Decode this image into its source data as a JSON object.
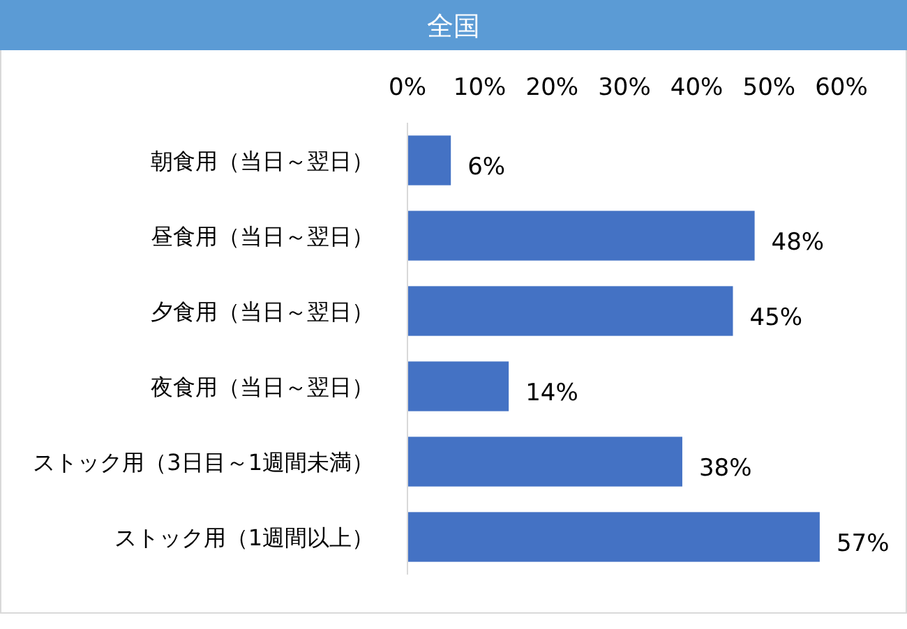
{
  "chart_data": {
    "type": "bar",
    "orientation": "horizontal",
    "title": "全国",
    "categories": [
      "朝食用（当日～翌日）",
      "昼食用（当日～翌日）",
      "夕食用（当日～翌日）",
      "夜食用（当日～翌日）",
      "ストック用（3日目～1週間未満）",
      "ストック用（1週間以上）"
    ],
    "values": [
      6,
      48,
      45,
      14,
      38,
      57
    ],
    "value_labels": [
      "6%",
      "48%",
      "45%",
      "14%",
      "38%",
      "57%"
    ],
    "color": "#4472c4",
    "xlim": [
      0,
      60
    ],
    "xticks": [
      {
        "value": 0,
        "label": "0%"
      },
      {
        "value": 10,
        "label": "10%"
      },
      {
        "value": 20,
        "label": "20%"
      },
      {
        "value": 30,
        "label": "30%"
      },
      {
        "value": 40,
        "label": "40%"
      },
      {
        "value": 50,
        "label": "50%"
      },
      {
        "value": 60,
        "label": "60%"
      }
    ],
    "grid": false
  }
}
